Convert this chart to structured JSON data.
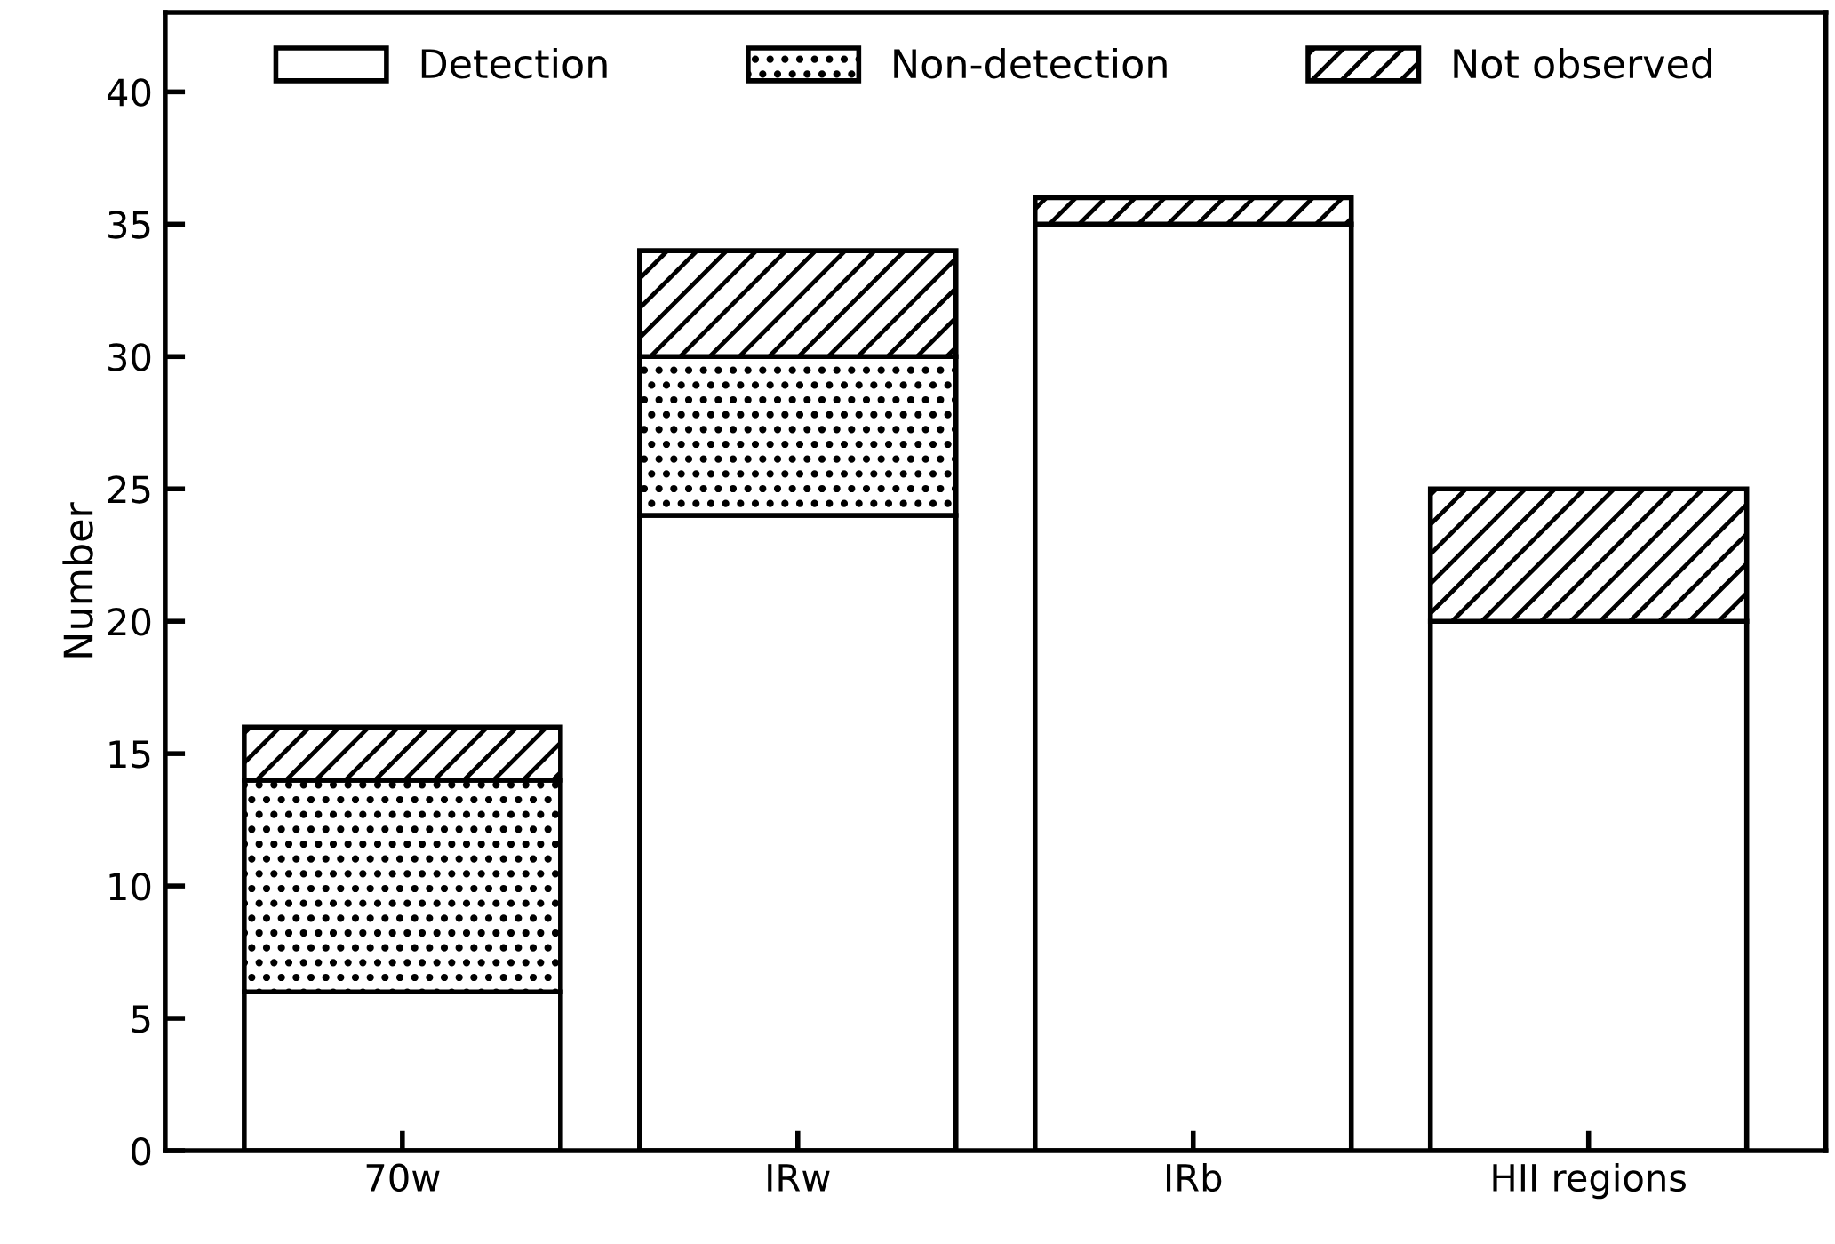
{
  "chart_data": {
    "type": "bar",
    "stacked": true,
    "ylabel": "Number",
    "categories": [
      "70w",
      "IRw",
      "IRb",
      "HII regions"
    ],
    "series": [
      {
        "name": "Detection",
        "color": "#ffffff",
        "values": [
          6,
          24,
          35,
          20
        ]
      },
      {
        "name": "Non-detection",
        "color": "#ffffff",
        "values": [
          8,
          6,
          0,
          0
        ]
      },
      {
        "name": "Not observed",
        "color": "#ffffff",
        "values": [
          2,
          4,
          1,
          5
        ]
      }
    ],
    "ylim": [
      0,
      43
    ],
    "yticks": [
      0,
      5,
      10,
      15,
      20,
      25,
      30,
      35,
      40
    ],
    "grid": false,
    "legend": "top"
  }
}
